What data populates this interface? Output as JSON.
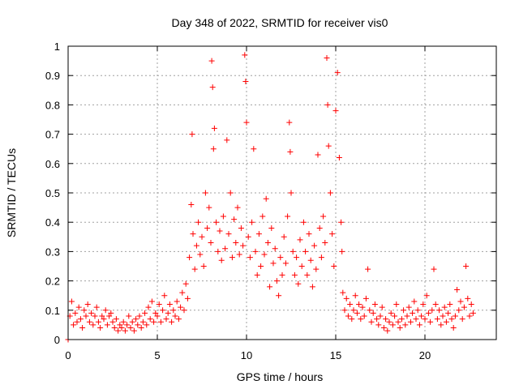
{
  "chart_data": {
    "type": "scatter",
    "title": "Day 348 of 2022, SRMTID for receiver vis0",
    "xlabel": "GPS time / hours",
    "ylabel": "SRMTID / TECUs",
    "xlim": [
      0,
      24
    ],
    "ylim": [
      0,
      1
    ],
    "xticks": [
      0,
      5,
      10,
      15,
      20
    ],
    "yticks": [
      0,
      0.1,
      0.2,
      0.3,
      0.4,
      0.5,
      0.6,
      0.7,
      0.8,
      0.9,
      1
    ],
    "xtick_labels": [
      "0",
      "5",
      "10",
      "15",
      "20"
    ],
    "ytick_labels": [
      "0",
      "0.1",
      "0.2",
      "0.3",
      "0.4",
      "0.5",
      "0.6",
      "0.7",
      "0.8",
      "0.9",
      "1"
    ],
    "grid": true,
    "marker": "+",
    "color": "#ff0000",
    "series": [
      {
        "name": "SRMTID vis0",
        "points": [
          [
            0.0,
            0.0
          ],
          [
            0.1,
            0.08
          ],
          [
            0.2,
            0.13
          ],
          [
            0.3,
            0.05
          ],
          [
            0.4,
            0.09
          ],
          [
            0.5,
            0.06
          ],
          [
            0.6,
            0.11
          ],
          [
            0.7,
            0.07
          ],
          [
            0.8,
            0.04
          ],
          [
            0.9,
            0.1
          ],
          [
            1.0,
            0.08
          ],
          [
            1.1,
            0.12
          ],
          [
            1.2,
            0.06
          ],
          [
            1.3,
            0.09
          ],
          [
            1.4,
            0.05
          ],
          [
            1.5,
            0.08
          ],
          [
            1.6,
            0.11
          ],
          [
            1.7,
            0.06
          ],
          [
            1.8,
            0.04
          ],
          [
            1.9,
            0.08
          ],
          [
            2.0,
            0.07
          ],
          [
            2.1,
            0.1
          ],
          [
            2.2,
            0.05
          ],
          [
            2.3,
            0.08
          ],
          [
            2.4,
            0.09
          ],
          [
            2.5,
            0.06
          ],
          [
            2.6,
            0.04
          ],
          [
            2.7,
            0.07
          ],
          [
            2.8,
            0.03
          ],
          [
            2.9,
            0.05
          ],
          [
            3.0,
            0.04
          ],
          [
            3.1,
            0.06
          ],
          [
            3.2,
            0.03
          ],
          [
            3.3,
            0.05
          ],
          [
            3.4,
            0.08
          ],
          [
            3.5,
            0.04
          ],
          [
            3.6,
            0.06
          ],
          [
            3.7,
            0.03
          ],
          [
            3.8,
            0.07
          ],
          [
            3.9,
            0.05
          ],
          [
            4.0,
            0.08
          ],
          [
            4.1,
            0.04
          ],
          [
            4.2,
            0.06
          ],
          [
            4.3,
            0.09
          ],
          [
            4.4,
            0.05
          ],
          [
            4.5,
            0.11
          ],
          [
            4.6,
            0.07
          ],
          [
            4.7,
            0.13
          ],
          [
            4.8,
            0.06
          ],
          [
            4.9,
            0.09
          ],
          [
            5.0,
            0.08
          ],
          [
            5.1,
            0.12
          ],
          [
            5.2,
            0.06
          ],
          [
            5.3,
            0.1
          ],
          [
            5.4,
            0.15
          ],
          [
            5.5,
            0.07
          ],
          [
            5.6,
            0.09
          ],
          [
            5.7,
            0.12
          ],
          [
            5.8,
            0.06
          ],
          [
            5.9,
            0.1
          ],
          [
            6.0,
            0.08
          ],
          [
            6.1,
            0.13
          ],
          [
            6.2,
            0.07
          ],
          [
            6.3,
            0.11
          ],
          [
            6.4,
            0.16
          ],
          [
            6.5,
            0.1
          ],
          [
            6.6,
            0.19
          ],
          [
            6.7,
            0.14
          ],
          [
            6.8,
            0.28
          ],
          [
            6.9,
            0.46
          ],
          [
            6.95,
            0.7
          ],
          [
            7.0,
            0.36
          ],
          [
            7.1,
            0.24
          ],
          [
            7.2,
            0.32
          ],
          [
            7.3,
            0.4
          ],
          [
            7.4,
            0.29
          ],
          [
            7.5,
            0.35
          ],
          [
            7.6,
            0.25
          ],
          [
            7.7,
            0.5
          ],
          [
            7.8,
            0.38
          ],
          [
            7.9,
            0.45
          ],
          [
            8.0,
            0.33
          ],
          [
            8.05,
            0.95
          ],
          [
            8.1,
            0.86
          ],
          [
            8.15,
            0.65
          ],
          [
            8.2,
            0.72
          ],
          [
            8.3,
            0.4
          ],
          [
            8.4,
            0.3
          ],
          [
            8.5,
            0.37
          ],
          [
            8.6,
            0.27
          ],
          [
            8.7,
            0.42
          ],
          [
            8.8,
            0.31
          ],
          [
            8.9,
            0.68
          ],
          [
            9.0,
            0.36
          ],
          [
            9.1,
            0.5
          ],
          [
            9.2,
            0.28
          ],
          [
            9.3,
            0.41
          ],
          [
            9.4,
            0.33
          ],
          [
            9.5,
            0.45
          ],
          [
            9.6,
            0.29
          ],
          [
            9.7,
            0.38
          ],
          [
            9.8,
            0.32
          ],
          [
            9.9,
            0.97
          ],
          [
            9.95,
            0.88
          ],
          [
            10.0,
            0.74
          ],
          [
            10.1,
            0.35
          ],
          [
            10.2,
            0.28
          ],
          [
            10.3,
            0.4
          ],
          [
            10.4,
            0.65
          ],
          [
            10.5,
            0.3
          ],
          [
            10.6,
            0.22
          ],
          [
            10.7,
            0.36
          ],
          [
            10.8,
            0.25
          ],
          [
            10.9,
            0.42
          ],
          [
            11.0,
            0.29
          ],
          [
            11.1,
            0.48
          ],
          [
            11.2,
            0.33
          ],
          [
            11.3,
            0.18
          ],
          [
            11.4,
            0.38
          ],
          [
            11.5,
            0.26
          ],
          [
            11.6,
            0.31
          ],
          [
            11.7,
            0.2
          ],
          [
            11.8,
            0.15
          ],
          [
            11.9,
            0.28
          ],
          [
            12.0,
            0.22
          ],
          [
            12.1,
            0.35
          ],
          [
            12.2,
            0.26
          ],
          [
            12.3,
            0.42
          ],
          [
            12.4,
            0.74
          ],
          [
            12.45,
            0.64
          ],
          [
            12.5,
            0.5
          ],
          [
            12.6,
            0.3
          ],
          [
            12.7,
            0.22
          ],
          [
            12.8,
            0.28
          ],
          [
            12.9,
            0.19
          ],
          [
            13.0,
            0.34
          ],
          [
            13.1,
            0.25
          ],
          [
            13.2,
            0.4
          ],
          [
            13.3,
            0.3
          ],
          [
            13.4,
            0.22
          ],
          [
            13.5,
            0.36
          ],
          [
            13.6,
            0.27
          ],
          [
            13.7,
            0.18
          ],
          [
            13.8,
            0.32
          ],
          [
            13.9,
            0.24
          ],
          [
            14.0,
            0.63
          ],
          [
            14.1,
            0.38
          ],
          [
            14.2,
            0.28
          ],
          [
            14.3,
            0.42
          ],
          [
            14.4,
            0.33
          ],
          [
            14.5,
            0.96
          ],
          [
            14.55,
            0.8
          ],
          [
            14.6,
            0.66
          ],
          [
            14.7,
            0.5
          ],
          [
            14.8,
            0.36
          ],
          [
            14.9,
            0.25
          ],
          [
            15.0,
            0.78
          ],
          [
            15.1,
            0.91
          ],
          [
            15.2,
            0.62
          ],
          [
            15.3,
            0.4
          ],
          [
            15.35,
            0.3
          ],
          [
            15.4,
            0.16
          ],
          [
            15.5,
            0.1
          ],
          [
            15.6,
            0.14
          ],
          [
            15.7,
            0.08
          ],
          [
            15.8,
            0.12
          ],
          [
            15.9,
            0.07
          ],
          [
            16.0,
            0.1
          ],
          [
            16.1,
            0.15
          ],
          [
            16.2,
            0.09
          ],
          [
            16.3,
            0.12
          ],
          [
            16.4,
            0.07
          ],
          [
            16.5,
            0.11
          ],
          [
            16.6,
            0.08
          ],
          [
            16.7,
            0.14
          ],
          [
            16.8,
            0.24
          ],
          [
            16.9,
            0.1
          ],
          [
            17.0,
            0.06
          ],
          [
            17.1,
            0.09
          ],
          [
            17.2,
            0.12
          ],
          [
            17.3,
            0.07
          ],
          [
            17.4,
            0.05
          ],
          [
            17.5,
            0.08
          ],
          [
            17.6,
            0.11
          ],
          [
            17.7,
            0.04
          ],
          [
            17.8,
            0.07
          ],
          [
            17.9,
            0.03
          ],
          [
            18.0,
            0.06
          ],
          [
            18.1,
            0.09
          ],
          [
            18.2,
            0.05
          ],
          [
            18.3,
            0.08
          ],
          [
            18.4,
            0.12
          ],
          [
            18.5,
            0.06
          ],
          [
            18.6,
            0.04
          ],
          [
            18.7,
            0.07
          ],
          [
            18.8,
            0.1
          ],
          [
            18.9,
            0.05
          ],
          [
            19.0,
            0.08
          ],
          [
            19.1,
            0.11
          ],
          [
            19.2,
            0.06
          ],
          [
            19.3,
            0.09
          ],
          [
            19.4,
            0.13
          ],
          [
            19.5,
            0.07
          ],
          [
            19.6,
            0.1
          ],
          [
            19.7,
            0.05
          ],
          [
            19.8,
            0.08
          ],
          [
            19.9,
            0.12
          ],
          [
            20.0,
            0.07
          ],
          [
            20.1,
            0.15
          ],
          [
            20.2,
            0.09
          ],
          [
            20.3,
            0.06
          ],
          [
            20.4,
            0.1
          ],
          [
            20.5,
            0.24
          ],
          [
            20.6,
            0.12
          ],
          [
            20.7,
            0.07
          ],
          [
            20.8,
            0.1
          ],
          [
            20.9,
            0.05
          ],
          [
            21.0,
            0.08
          ],
          [
            21.1,
            0.11
          ],
          [
            21.2,
            0.06
          ],
          [
            21.3,
            0.09
          ],
          [
            21.4,
            0.12
          ],
          [
            21.5,
            0.07
          ],
          [
            21.6,
            0.04
          ],
          [
            21.7,
            0.08
          ],
          [
            21.8,
            0.17
          ],
          [
            21.9,
            0.1
          ],
          [
            22.0,
            0.13
          ],
          [
            22.1,
            0.07
          ],
          [
            22.2,
            0.11
          ],
          [
            22.3,
            0.25
          ],
          [
            22.4,
            0.14
          ],
          [
            22.5,
            0.08
          ],
          [
            22.6,
            0.12
          ],
          [
            22.7,
            0.09
          ]
        ]
      }
    ]
  }
}
